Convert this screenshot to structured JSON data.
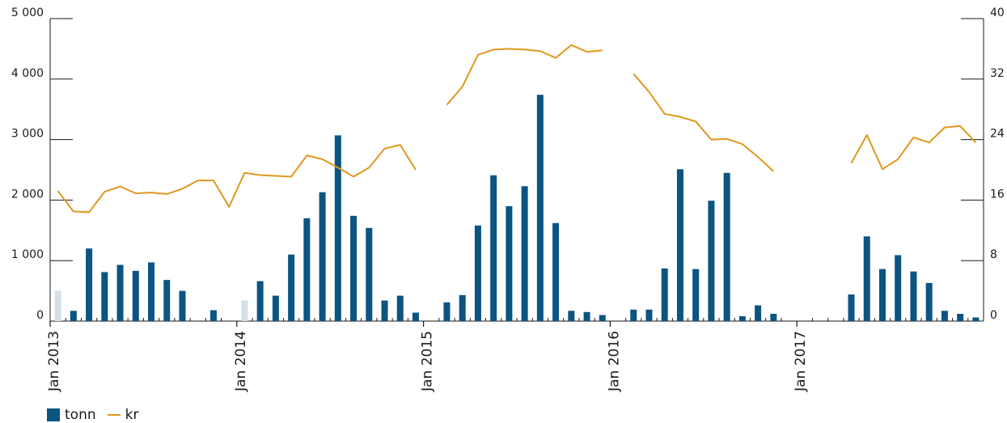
{
  "colors": {
    "bar": "#0c5481",
    "bar_light": "#d3dfe9",
    "line": "#e0981f",
    "axis": "#1a1a1a"
  },
  "legend": [
    {
      "label": "tonn",
      "kind": "bar"
    },
    {
      "label": "kr",
      "kind": "line"
    }
  ],
  "chart_data": {
    "type": "bar",
    "x_labels": [
      "Jan 2013",
      "Jan 2014",
      "Jan 2015",
      "Jan 2016",
      "Jan 2017"
    ],
    "months": [
      "2013-01",
      "2013-02",
      "2013-03",
      "2013-04",
      "2013-05",
      "2013-06",
      "2013-07",
      "2013-08",
      "2013-09",
      "2013-10",
      "2013-11",
      "2013-12",
      "2014-01",
      "2014-02",
      "2014-03",
      "2014-04",
      "2014-05",
      "2014-06",
      "2014-07",
      "2014-08",
      "2014-09",
      "2014-10",
      "2014-11",
      "2014-12",
      "2015-01",
      "2015-02",
      "2015-03",
      "2015-04",
      "2015-05",
      "2015-06",
      "2015-07",
      "2015-08",
      "2015-09",
      "2015-10",
      "2015-11",
      "2015-12",
      "2016-01",
      "2016-02",
      "2016-03",
      "2016-04",
      "2016-05",
      "2016-06",
      "2016-07",
      "2016-08",
      "2016-09",
      "2016-10",
      "2016-11",
      "2016-12",
      "2017-01",
      "2017-02",
      "2017-03",
      "2017-04",
      "2017-05",
      "2017-06",
      "2017-07",
      "2017-08",
      "2017-09",
      "2017-10",
      "2017-11",
      "2017-12"
    ],
    "y_left": {
      "ticks": [
        "0",
        "1 000",
        "2 000",
        "3 000",
        "4 000",
        "5 000"
      ],
      "range": [
        0,
        5000
      ]
    },
    "y_right": {
      "ticks": [
        "0",
        "8",
        "16",
        "24",
        "32",
        "40"
      ],
      "range": [
        0,
        40
      ]
    },
    "series": [
      {
        "name": "tonn",
        "type": "bar",
        "axis": "left",
        "values": [
          500,
          170,
          1200,
          810,
          930,
          830,
          970,
          680,
          500,
          null,
          180,
          null,
          340,
          660,
          420,
          1100,
          1700,
          2130,
          3070,
          1740,
          1540,
          340,
          420,
          140,
          null,
          310,
          430,
          1580,
          2410,
          1900,
          2230,
          3740,
          1620,
          170,
          150,
          100,
          null,
          190,
          190,
          870,
          2510,
          860,
          1990,
          2450,
          80,
          260,
          120,
          null,
          null,
          null,
          null,
          440,
          1400,
          860,
          1090,
          820,
          630,
          170,
          120,
          60
        ],
        "faded_months": [
          "2013-01",
          "2014-01"
        ]
      },
      {
        "name": "kr",
        "type": "line",
        "axis": "right",
        "values": [
          17.2,
          14.5,
          14.4,
          17.1,
          17.8,
          16.9,
          17.0,
          16.8,
          17.5,
          18.6,
          18.6,
          15.1,
          19.6,
          19.3,
          19.2,
          19.1,
          21.9,
          21.4,
          20.3,
          19.1,
          20.3,
          22.8,
          23.3,
          20.0,
          null,
          28.6,
          31.0,
          35.2,
          35.9,
          36.0,
          35.9,
          35.7,
          34.8,
          36.5,
          35.6,
          35.8,
          null,
          32.7,
          30.3,
          27.4,
          27.0,
          26.4,
          24.0,
          24.1,
          23.4,
          21.7,
          19.8,
          null,
          null,
          null,
          null,
          20.9,
          24.6,
          20.1,
          21.4,
          24.3,
          23.6,
          25.6,
          25.8,
          23.6
        ]
      }
    ],
    "grid": false,
    "legend_position": "bottom-left"
  }
}
